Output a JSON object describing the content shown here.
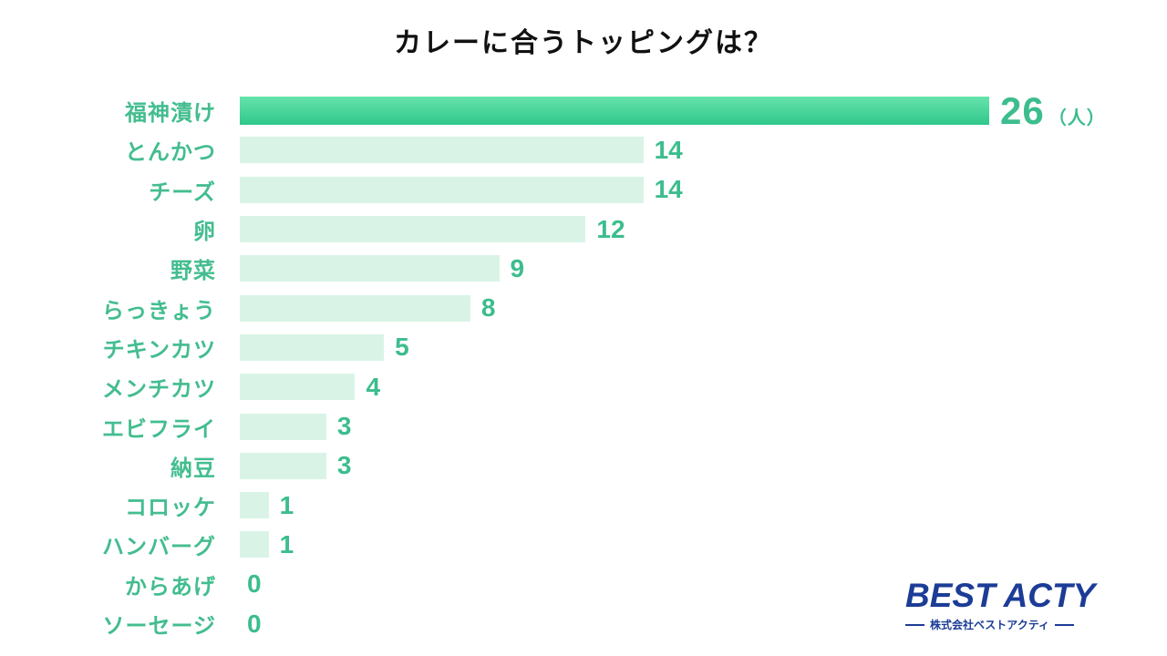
{
  "title": "カレーに合うトッピングは？",
  "chart_data": {
    "type": "bar",
    "orientation": "horizontal",
    "title": "カレーに合うトッピングは？",
    "categories": [
      "福神漬け",
      "とんかつ",
      "チーズ",
      "卵",
      "野菜",
      "らっきょう",
      "チキンカツ",
      "メンチカツ",
      "エビフライ",
      "納豆",
      "コロッケ",
      "ハンバーグ",
      "からあげ",
      "ソーセージ"
    ],
    "values": [
      26,
      14,
      14,
      12,
      9,
      8,
      5,
      4,
      3,
      3,
      1,
      1,
      0,
      0
    ],
    "unit": "人",
    "unit_label_display": "（人）",
    "xlim": [
      0,
      26
    ],
    "highlight_index": 0,
    "grid": false,
    "legend": "none"
  },
  "logo": {
    "name": "BEST ACTY",
    "company": "株式会社ベストアクティ"
  },
  "colors": {
    "title_text": "#111111",
    "label_text": "#43bd8f",
    "value_text": "#3cbd8d",
    "bar_default": "#d9f4e6",
    "bar_highlight_top": "#67e3ad",
    "bar_highlight_bottom": "#2fc78a",
    "logo_navy": "#1c3c96"
  }
}
